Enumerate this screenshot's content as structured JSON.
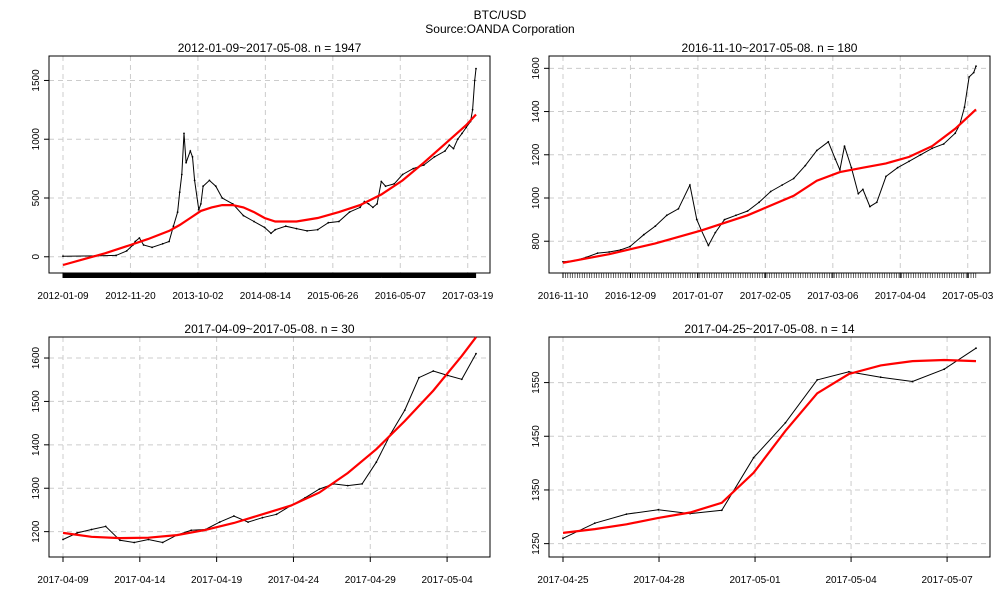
{
  "figure": {
    "title": "BTC/USD",
    "subtitle": "Source:OANDA Corporation"
  },
  "chart_data": [
    {
      "type": "line",
      "title": "2012-01-09~2017-05-08. n = 1947",
      "x_tick_labels": [
        "2012-01-09",
        "2012-11-20",
        "2013-10-02",
        "2014-08-14",
        "2015-06-26",
        "2016-05-07",
        "2017-03-19"
      ],
      "y_ticks": [
        0,
        500,
        1000,
        1500
      ],
      "xlim": [
        0,
        1946
      ],
      "ylim": [
        -70,
        1640
      ],
      "series": [
        {
          "role": "price",
          "color": "#000000",
          "x": [
            0,
            150,
            250,
            300,
            330,
            340,
            360,
            380,
            420,
            470,
            500,
            520,
            540,
            550,
            560,
            570,
            580,
            600,
            610,
            620,
            640,
            650,
            660,
            690,
            720,
            750,
            800,
            850,
            900,
            950,
            980,
            1000,
            1050,
            1100,
            1150,
            1200,
            1250,
            1300,
            1350,
            1400,
            1420,
            1440,
            1460,
            1480,
            1500,
            1520,
            1560,
            1600,
            1650,
            1700,
            1750,
            1800,
            1820,
            1840,
            1860,
            1880,
            1900,
            1920,
            1930,
            1940,
            1946
          ],
          "y": [
            5,
            7,
            12,
            50,
            100,
            130,
            160,
            100,
            80,
            110,
            130,
            260,
            380,
            550,
            700,
            1050,
            800,
            900,
            850,
            650,
            400,
            450,
            600,
            650,
            600,
            500,
            450,
            350,
            300,
            250,
            200,
            230,
            260,
            240,
            220,
            230,
            290,
            300,
            380,
            420,
            470,
            450,
            420,
            450,
            640,
            600,
            620,
            700,
            750,
            780,
            850,
            900,
            950,
            920,
            1000,
            1050,
            1100,
            1150,
            1250,
            1500,
            1600
          ]
        },
        {
          "role": "trend",
          "color": "#ff0000",
          "x": [
            0,
            100,
            200,
            300,
            400,
            500,
            550,
            600,
            650,
            700,
            750,
            800,
            850,
            900,
            950,
            1000,
            1100,
            1200,
            1300,
            1400,
            1500,
            1600,
            1700,
            1800,
            1900,
            1946
          ],
          "y": [
            -70,
            -20,
            30,
            90,
            150,
            220,
            270,
            330,
            390,
            420,
            440,
            440,
            420,
            380,
            330,
            300,
            300,
            330,
            380,
            440,
            530,
            650,
            800,
            960,
            1120,
            1210
          ]
        }
      ]
    },
    {
      "type": "line",
      "title": "2016-11-10~2017-05-08. n = 180",
      "x_tick_labels": [
        "2016-11-10",
        "2016-12-09",
        "2017-01-07",
        "2017-02-05",
        "2017-03-06",
        "2017-04-04",
        "2017-05-03"
      ],
      "y_ticks": [
        800,
        1000,
        1200,
        1400,
        1600
      ],
      "xlim": [
        0,
        179
      ],
      "ylim": [
        690,
        1620
      ],
      "series": [
        {
          "role": "price",
          "color": "#000000",
          "x": [
            0,
            5,
            10,
            15,
            20,
            25,
            29,
            35,
            40,
            45,
            50,
            55,
            58,
            60,
            63,
            66,
            70,
            75,
            80,
            85,
            90,
            95,
            100,
            105,
            110,
            115,
            118,
            120,
            122,
            125,
            128,
            130,
            133,
            136,
            140,
            145,
            150,
            155,
            160,
            165,
            170,
            172,
            174,
            176,
            178,
            179
          ],
          "y": [
            705,
            710,
            725,
            745,
            750,
            760,
            775,
            830,
            870,
            920,
            950,
            1060,
            900,
            850,
            780,
            840,
            900,
            920,
            940,
            980,
            1030,
            1060,
            1090,
            1150,
            1220,
            1260,
            1180,
            1130,
            1240,
            1140,
            1020,
            1040,
            960,
            980,
            1100,
            1140,
            1170,
            1200,
            1230,
            1250,
            1300,
            1340,
            1420,
            1560,
            1580,
            1610
          ]
        },
        {
          "role": "trend",
          "color": "#ff0000",
          "x": [
            0,
            20,
            40,
            60,
            80,
            100,
            110,
            120,
            130,
            140,
            150,
            160,
            170,
            179
          ],
          "y": [
            700,
            740,
            790,
            850,
            920,
            1010,
            1080,
            1120,
            1140,
            1160,
            1190,
            1240,
            1320,
            1410
          ]
        }
      ]
    },
    {
      "type": "line",
      "title": "2017-04-09~2017-05-08. n = 30",
      "x_tick_labels": [
        "2017-04-09",
        "2017-04-14",
        "2017-04-19",
        "2017-04-24",
        "2017-04-29",
        "2017-05-04"
      ],
      "y_ticks": [
        1200,
        1300,
        1400,
        1500,
        1600
      ],
      "xlim": [
        0,
        29
      ],
      "ylim": [
        1160,
        1630
      ],
      "series": [
        {
          "role": "price",
          "color": "#000000",
          "x": [
            0,
            1,
            2,
            3,
            4,
            5,
            6,
            7,
            8,
            9,
            10,
            11,
            12,
            13,
            14,
            15,
            16,
            17,
            18,
            19,
            20,
            21,
            22,
            23,
            24,
            25,
            26,
            27,
            28,
            29
          ],
          "y": [
            1182,
            1197,
            1205,
            1212,
            1180,
            1175,
            1182,
            1175,
            1192,
            1203,
            1205,
            1222,
            1236,
            1222,
            1232,
            1240,
            1260,
            1278,
            1298,
            1310,
            1306,
            1310,
            1360,
            1425,
            1480,
            1555,
            1570,
            1560,
            1551,
            1610
          ]
        },
        {
          "role": "trend",
          "color": "#ff0000",
          "x": [
            0,
            2,
            4,
            6,
            8,
            10,
            12,
            14,
            16,
            18,
            20,
            22,
            24,
            26,
            28,
            29
          ],
          "y": [
            1197,
            1188,
            1185,
            1186,
            1192,
            1204,
            1220,
            1240,
            1260,
            1290,
            1335,
            1390,
            1455,
            1525,
            1605,
            1648
          ]
        }
      ]
    },
    {
      "type": "line",
      "title": "2017-04-25~2017-05-08. n = 14",
      "x_tick_labels": [
        "2017-04-25",
        "2017-04-28",
        "2017-05-01",
        "2017-05-04",
        "2017-05-07"
      ],
      "y_ticks": [
        1250,
        1350,
        1450,
        1550
      ],
      "xlim": [
        0,
        13
      ],
      "ylim": [
        1240,
        1620
      ],
      "series": [
        {
          "role": "price",
          "color": "#000000",
          "x": [
            0,
            1,
            2,
            3,
            4,
            5,
            6,
            7,
            8,
            9,
            10,
            11,
            12,
            13
          ],
          "y": [
            1260,
            1288,
            1305,
            1313,
            1306,
            1312,
            1410,
            1475,
            1555,
            1570,
            1560,
            1552,
            1575,
            1614
          ]
        },
        {
          "role": "trend",
          "color": "#ff0000",
          "x": [
            0,
            1,
            2,
            3,
            4,
            5,
            6,
            7,
            8,
            9,
            10,
            11,
            12,
            13
          ],
          "y": [
            1270,
            1277,
            1286,
            1298,
            1308,
            1326,
            1382,
            1460,
            1530,
            1566,
            1582,
            1590,
            1592,
            1590
          ]
        }
      ]
    }
  ]
}
